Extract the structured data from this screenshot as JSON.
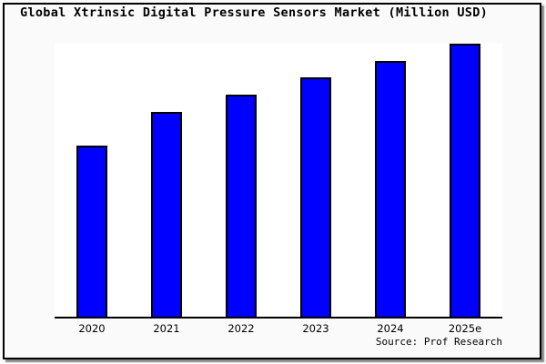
{
  "title": "Global Xtrinsic Digital Pressure Sensors Market (Million USD)",
  "source": "Source: Prof Research",
  "colors": {
    "canvas_background": "#fafafa",
    "plot_background": "#ffffff",
    "bar_fill": "#0000ff",
    "bar_border": "#000000",
    "frame_border": "#000000",
    "frame_shadow": "#8a8a8a",
    "axis_line": "#000000",
    "text": "#000000"
  },
  "chart_data": {
    "type": "bar",
    "title": "Global Xtrinsic Digital Pressure Sensors Market (Million USD)",
    "categories": [
      "2020",
      "2021",
      "2022",
      "2023",
      "2024",
      "2025e"
    ],
    "values": [
      62.7,
      75.0,
      81.3,
      87.7,
      93.7,
      100.0
    ],
    "value_scale": "relative index, 2025e = 100 (no y-axis tick labels shown in chart)",
    "xlabel": "",
    "ylabel": "",
    "ylim": [
      0,
      100
    ],
    "grid": false,
    "legend": false,
    "annotations": [
      "Source: Prof Research"
    ]
  }
}
